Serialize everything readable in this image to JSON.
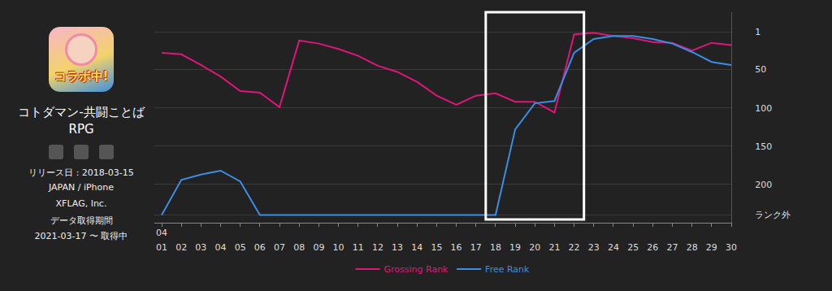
{
  "app": {
    "icon_text": "コラボ中!",
    "name": "コトダマン-共闘ことばRPG",
    "release": "リリース日 : 2018-03-15",
    "region": "JAPAN / iPhone",
    "publisher": "XFLAG, Inc.",
    "period_label": "データ取得期間",
    "period": "2021-03-17 〜 取得中"
  },
  "chart_data": {
    "type": "line",
    "month_label": "04",
    "categories": [
      "01",
      "02",
      "03",
      "04",
      "05",
      "06",
      "07",
      "08",
      "09",
      "10",
      "11",
      "12",
      "13",
      "14",
      "15",
      "16",
      "17",
      "18",
      "19",
      "20",
      "21",
      "22",
      "23",
      "24",
      "25",
      "26",
      "27",
      "28",
      "29",
      "30"
    ],
    "series": [
      {
        "name": "Grossing Rank",
        "color": "#e0157a",
        "values": [
          28,
          30,
          44,
          59,
          78,
          80,
          99,
          12,
          16,
          23,
          32,
          45,
          53,
          66,
          84,
          96,
          84,
          81,
          92,
          92,
          106,
          4,
          2,
          6,
          9,
          14,
          15,
          25,
          15,
          18
        ]
      },
      {
        "name": "Free Rank",
        "color": "#3a8ee6",
        "values": [
          240,
          194,
          187,
          182,
          196,
          240,
          240,
          240,
          240,
          240,
          240,
          240,
          240,
          240,
          240,
          240,
          240,
          240,
          128,
          94,
          91,
          28,
          10,
          6,
          6,
          10,
          16,
          27,
          40,
          44
        ]
      }
    ],
    "ylim": [
      250,
      -25
    ],
    "yticks": [
      1,
      50,
      100,
      150,
      200,
      {
        "value": 240,
        "label": "ランク外"
      }
    ],
    "grid": true,
    "legend": "bottom",
    "highlight": {
      "from": "18",
      "to": "22"
    }
  }
}
